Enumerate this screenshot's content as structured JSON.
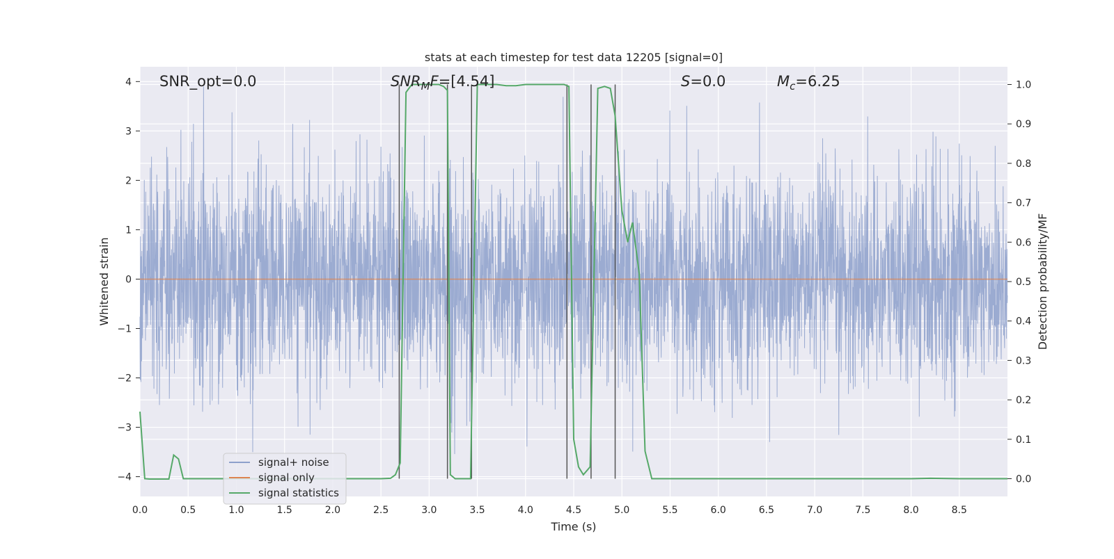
{
  "chart_data": {
    "type": "line",
    "title": "stats at each timestep for test data 12205 [signal=0]",
    "xlabel": "Time (s)",
    "ylabel_left": "Whitened strain",
    "ylabel_right": "Detection probability/MF",
    "xlim": [
      0,
      9.0
    ],
    "ylim_left": [
      -4.4,
      4.3
    ],
    "ylim_right": [
      -0.045,
      1.045
    ],
    "x_ticks": [
      "0.0",
      "0.5",
      "1.0",
      "1.5",
      "2.0",
      "2.5",
      "3.0",
      "3.5",
      "4.0",
      "4.5",
      "5.0",
      "5.5",
      "6.0",
      "6.5",
      "7.0",
      "7.5",
      "8.0",
      "8.5"
    ],
    "y_left_ticks": [
      "4",
      "3",
      "2",
      "1",
      "0",
      "−1",
      "−2",
      "−3",
      "−4"
    ],
    "y_right_ticks": [
      "1.0",
      "0.9",
      "0.8",
      "0.7",
      "0.6",
      "0.5",
      "0.4",
      "0.3",
      "0.2",
      "0.1",
      "0.0"
    ],
    "grid": true,
    "legend_position": "lower-left",
    "annotations": [
      {
        "text": "SNR_opt=0.0",
        "x": 0.2,
        "y": 4.0
      },
      {
        "text": "SNR_MF=[4.54]",
        "x": 2.6,
        "y": 4.0
      },
      {
        "text": "S=0.0",
        "x": 5.6,
        "y": 4.0
      },
      {
        "text": "M_c=6.25",
        "x": 6.6,
        "y": 4.0
      }
    ],
    "vertical_lines_x": [
      2.69,
      3.19,
      3.44,
      4.43,
      4.68,
      4.93
    ],
    "series": [
      {
        "name": "signal+ noise",
        "axis": "left",
        "style": "dense noise, amplitude about ±1.5 typical, peaks to about ±3.9",
        "color": "#8da0cb"
      },
      {
        "name": "signal only",
        "axis": "left",
        "x": [
          0,
          9.0
        ],
        "y": [
          0,
          0
        ],
        "color": "#dd8452"
      },
      {
        "name": "signal statistics",
        "axis": "right",
        "color": "#55a868",
        "x": [
          0.0,
          0.05,
          0.1,
          0.2,
          0.3,
          0.35,
          0.4,
          0.45,
          0.5,
          0.6,
          1.0,
          1.5,
          2.0,
          2.5,
          2.6,
          2.65,
          2.7,
          2.76,
          2.82,
          2.9,
          3.0,
          3.1,
          3.15,
          3.19,
          3.22,
          3.27,
          3.35,
          3.43,
          3.5,
          3.6,
          3.7,
          3.8,
          3.9,
          4.0,
          4.2,
          4.4,
          4.45,
          4.5,
          4.55,
          4.6,
          4.67,
          4.75,
          4.82,
          4.88,
          4.93,
          5.0,
          5.06,
          5.11,
          5.18,
          5.24,
          5.31,
          5.4,
          6.0,
          7.0,
          8.0,
          8.2,
          8.5,
          9.0
        ],
        "y": [
          0.17,
          0.0,
          -0.001,
          -0.001,
          -0.001,
          0.06,
          0.05,
          0.0,
          0.0,
          0.0,
          0.0,
          0.0,
          0.0,
          0.0,
          0.001,
          0.01,
          0.04,
          0.98,
          1.0,
          1.0,
          1.0,
          1.0,
          0.995,
          0.985,
          0.01,
          0.0,
          0.0,
          0.0,
          1.0,
          1.0,
          1.0,
          0.997,
          0.997,
          1.0,
          1.0,
          1.0,
          0.995,
          0.1,
          0.03,
          0.01,
          0.03,
          0.99,
          0.995,
          0.99,
          0.92,
          0.68,
          0.6,
          0.65,
          0.52,
          0.07,
          0.0,
          0.0,
          0.0,
          0.0,
          0.0,
          0.001,
          0.0,
          0.0
        ]
      }
    ]
  }
}
